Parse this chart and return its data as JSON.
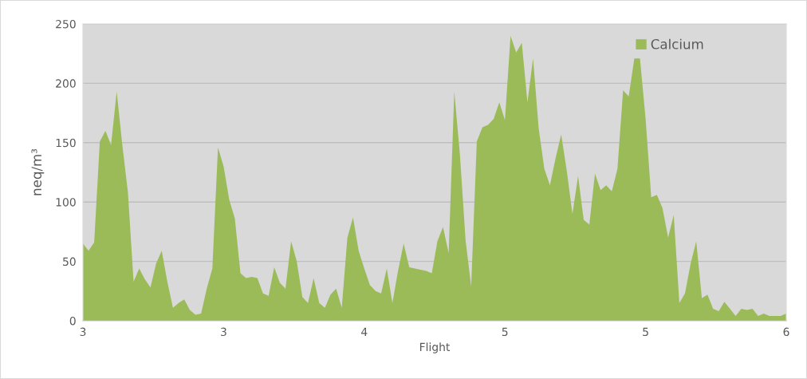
{
  "chart_data": {
    "type": "area",
    "xlabel": "Flight",
    "ylabel": "neq/m³",
    "categories": [
      "3",
      null,
      null,
      null,
      null,
      null,
      null,
      null,
      null,
      null,
      null,
      null,
      null,
      null,
      null,
      null,
      null,
      null,
      null,
      null,
      null,
      null,
      null,
      null,
      null,
      "3",
      null,
      null,
      null,
      null,
      null,
      null,
      null,
      null,
      null,
      null,
      null,
      null,
      null,
      null,
      null,
      null,
      null,
      null,
      null,
      null,
      null,
      null,
      null,
      null,
      "4",
      null,
      null,
      null,
      null,
      null,
      null,
      null,
      null,
      null,
      null,
      null,
      null,
      null,
      null,
      null,
      null,
      null,
      null,
      null,
      null,
      null,
      null,
      null,
      null,
      "5",
      null,
      null,
      null,
      null,
      null,
      null,
      null,
      null,
      null,
      null,
      null,
      null,
      null,
      null,
      null,
      null,
      null,
      null,
      null,
      null,
      null,
      null,
      null,
      null,
      "5",
      null,
      null,
      null,
      null,
      null,
      null,
      null,
      null,
      null,
      null,
      null,
      null,
      null,
      null,
      null,
      null,
      null,
      null,
      null,
      null,
      null,
      null,
      null,
      null,
      "6"
    ],
    "series": [
      {
        "name": "Calcium",
        "color": "#9bbb59",
        "values": [
          65,
          59,
          66,
          151,
          160,
          148,
          193,
          148,
          108,
          33,
          44,
          35,
          28,
          48,
          59,
          33,
          11,
          15,
          18,
          9,
          5,
          6,
          27,
          44,
          146,
          130,
          102,
          86,
          40,
          36,
          37,
          36,
          23,
          21,
          45,
          32,
          27,
          67,
          50,
          20,
          15,
          36,
          15,
          11,
          22,
          27,
          11,
          70,
          87,
          59,
          44,
          30,
          25,
          23,
          44,
          15,
          42,
          65,
          45,
          44,
          43,
          42,
          40,
          67,
          79,
          57,
          193,
          140,
          68,
          29,
          151,
          163,
          165,
          170,
          184,
          169,
          240,
          226,
          234,
          184,
          221,
          162,
          128,
          114,
          137,
          157,
          126,
          90,
          122,
          85,
          81,
          124,
          110,
          114,
          109,
          128,
          194,
          189,
          221,
          221,
          170,
          104,
          106,
          95,
          70,
          89,
          15,
          23,
          48,
          67,
          19,
          22,
          10,
          8,
          16,
          10,
          4,
          10,
          9,
          10,
          4,
          6,
          4,
          4,
          4,
          6
        ]
      }
    ],
    "ylim": [
      0,
      250
    ],
    "yticks": [
      0,
      50,
      100,
      150,
      200,
      250
    ],
    "grid": "y",
    "legend": "top right"
  }
}
